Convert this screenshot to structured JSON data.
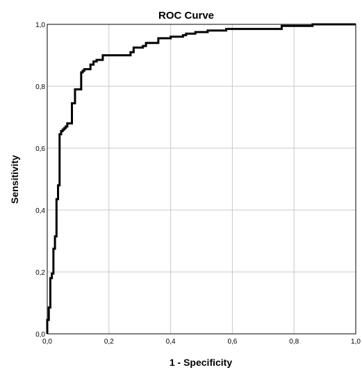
{
  "chart_data": {
    "type": "line",
    "title": "ROC Curve",
    "xlabel": "1 - Specificity",
    "ylabel": "Sensitivity",
    "xlim": [
      0,
      1
    ],
    "ylim": [
      0,
      1
    ],
    "grid": true,
    "x_ticks": [
      "0,0",
      "0,2",
      "0,4",
      "0,6",
      "0,8",
      "1,0"
    ],
    "y_ticks": [
      "0,0",
      "0,2",
      "0,4",
      "0,6",
      "0,8",
      "1,0"
    ],
    "colors": {
      "line": "#000000",
      "grid": "#c8c8c8",
      "frame": "#000000",
      "background": "#ffffff"
    },
    "series": [
      {
        "x": [
          0,
          0,
          0.005,
          0.005,
          0.01,
          0.01,
          0.015,
          0.015,
          0.02,
          0.02,
          0.025,
          0.025,
          0.03,
          0.03,
          0.035,
          0.035,
          0.04,
          0.04,
          0.045,
          0.045,
          0.05,
          0.05,
          0.055,
          0.055,
          0.06,
          0.06,
          0.065,
          0.065,
          0.07,
          0.07,
          0.075,
          0.075,
          0.08,
          0.08,
          0.09,
          0.09,
          0.11,
          0.11,
          0.115,
          0.115,
          0.12,
          0.12,
          0.14,
          0.14,
          0.15,
          0.15,
          0.16,
          0.16,
          0.18,
          0.18,
          0.27,
          0.27,
          0.28,
          0.28,
          0.31,
          0.31,
          0.32,
          0.32,
          0.36,
          0.36,
          0.4,
          0.4,
          0.44,
          0.44,
          0.45,
          0.45,
          0.48,
          0.48,
          0.52,
          0.52,
          0.58,
          0.58,
          0.76,
          0.76,
          0.86,
          0.86,
          1.0
        ],
        "y": [
          0,
          0.045,
          0.045,
          0.085,
          0.085,
          0.18,
          0.18,
          0.195,
          0.195,
          0.275,
          0.275,
          0.315,
          0.315,
          0.435,
          0.435,
          0.48,
          0.48,
          0.645,
          0.645,
          0.655,
          0.655,
          0.66,
          0.66,
          0.665,
          0.665,
          0.67,
          0.67,
          0.68,
          0.68,
          0.68,
          0.68,
          0.68,
          0.68,
          0.745,
          0.745,
          0.79,
          0.79,
          0.845,
          0.845,
          0.85,
          0.85,
          0.855,
          0.855,
          0.87,
          0.87,
          0.88,
          0.88,
          0.885,
          0.885,
          0.9,
          0.9,
          0.91,
          0.91,
          0.925,
          0.925,
          0.93,
          0.93,
          0.94,
          0.94,
          0.955,
          0.955,
          0.96,
          0.96,
          0.965,
          0.965,
          0.97,
          0.97,
          0.975,
          0.975,
          0.98,
          0.98,
          0.985,
          0.985,
          0.995,
          0.995,
          1.0,
          1.0
        ]
      }
    ]
  }
}
